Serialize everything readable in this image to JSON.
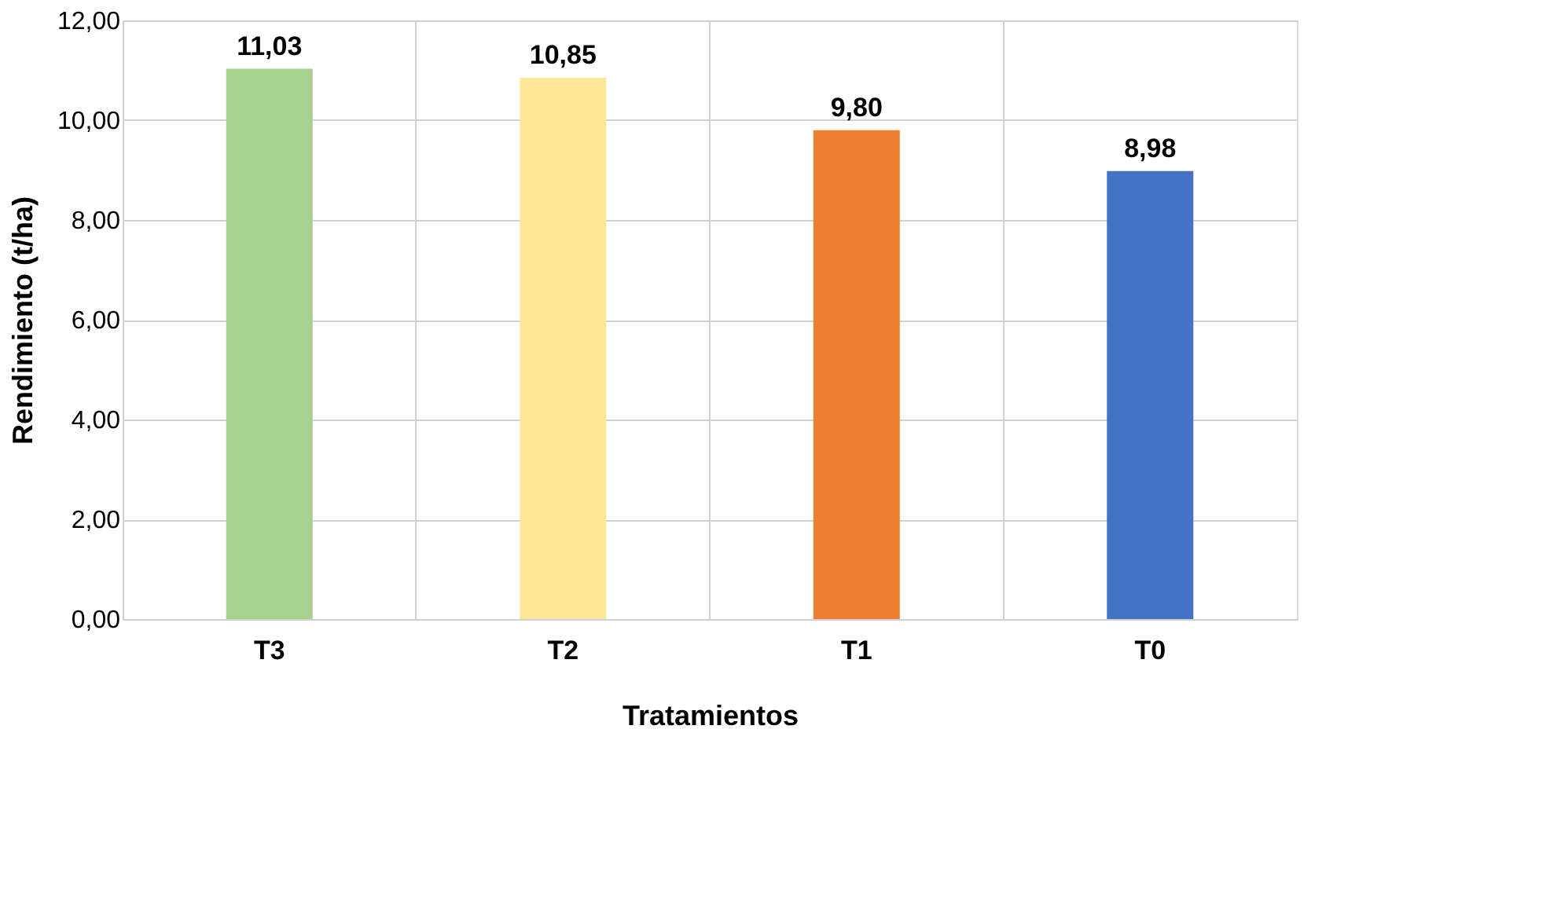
{
  "chart_data": {
    "type": "bar",
    "xlabel": "Tratamientos",
    "ylabel": "Rendimiento (t/ha)",
    "categories": [
      "T3",
      "T2",
      "T1",
      "T0"
    ],
    "values": [
      11.03,
      10.85,
      9.8,
      8.98
    ],
    "colors": [
      "#a9d18e",
      "#ffe699",
      "#ed7d31",
      "#4472c4"
    ],
    "value_labels": [
      "11,03",
      "10,85",
      "9,80",
      "8,98"
    ],
    "ylim": [
      0,
      12
    ],
    "yticks": [
      {
        "value": 0,
        "label": "0,00"
      },
      {
        "value": 2,
        "label": "2,00"
      },
      {
        "value": 4,
        "label": "4,00"
      },
      {
        "value": 6,
        "label": "6,00"
      },
      {
        "value": 8,
        "label": "8,00"
      },
      {
        "value": 10,
        "label": "10,00"
      },
      {
        "value": 12,
        "label": "12,00"
      }
    ],
    "grid": true
  }
}
